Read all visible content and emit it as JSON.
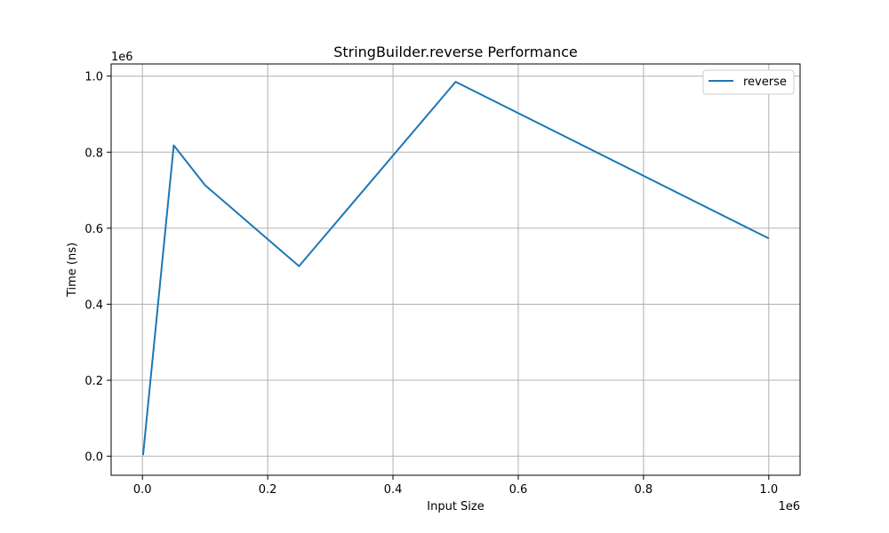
{
  "chart_data": {
    "type": "line",
    "title": "StringBuilder.reverse Performance",
    "xlabel": "Input Size",
    "ylabel": "Time (ns)",
    "x_offset_label": "1e6",
    "y_offset_label": "1e6",
    "xlim": [
      -50000,
      1050000
    ],
    "ylim": [
      -50000,
      1032000
    ],
    "x_ticks": [
      0,
      200000,
      400000,
      600000,
      800000,
      1000000
    ],
    "x_tick_labels": [
      "0.0",
      "0.2",
      "0.4",
      "0.6",
      "0.8",
      "1.0"
    ],
    "y_ticks": [
      0,
      200000,
      400000,
      600000,
      800000,
      1000000
    ],
    "y_tick_labels": [
      "0.0",
      "0.2",
      "0.4",
      "0.6",
      "0.8",
      "1.0"
    ],
    "grid": true,
    "legend_position": "top-right",
    "series": [
      {
        "name": "reverse",
        "color": "#1f77b4",
        "x": [
          1000,
          50000,
          100000,
          250000,
          500000,
          1000000
        ],
        "y": [
          3000,
          818000,
          713000,
          500000,
          985000,
          573000
        ]
      }
    ]
  }
}
